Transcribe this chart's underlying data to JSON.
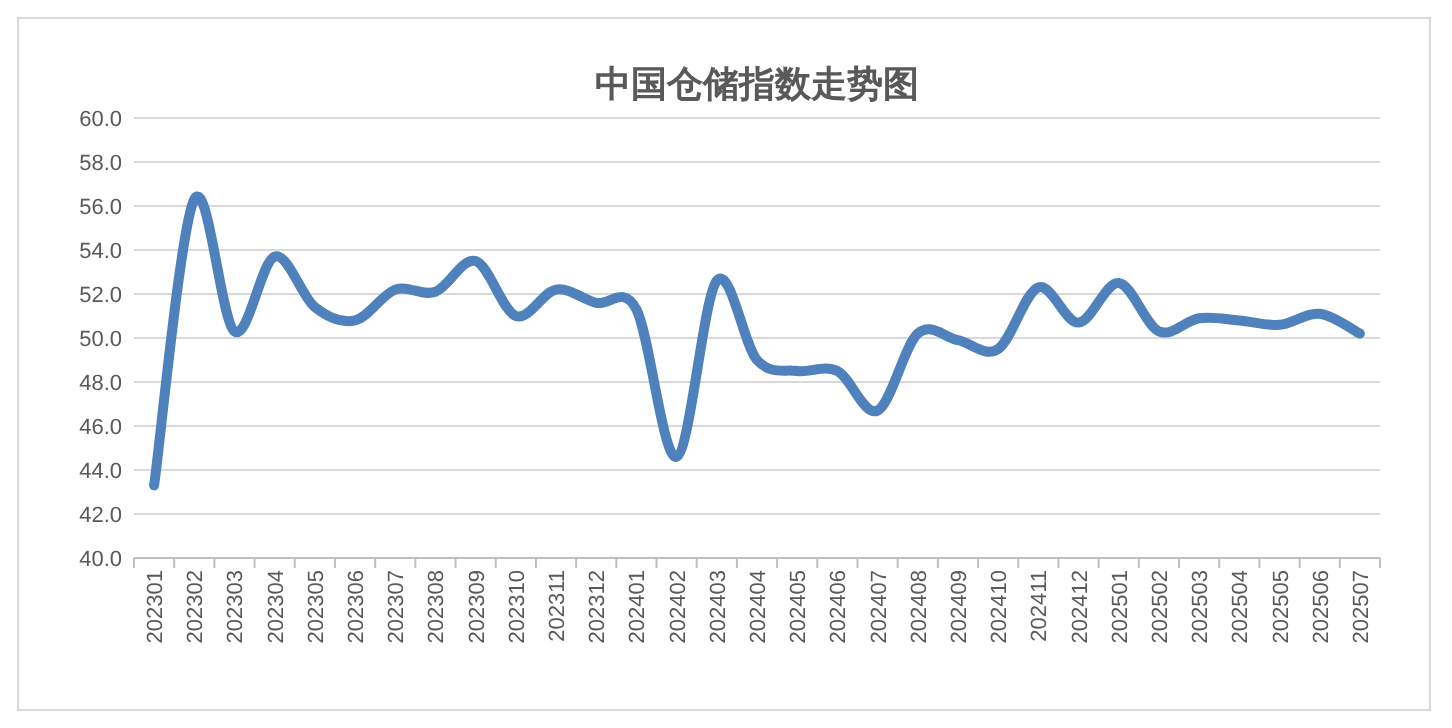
{
  "chart_data": {
    "type": "line",
    "title": "中国仓储指数走势图",
    "categories": [
      "202301",
      "202302",
      "202303",
      "202304",
      "202305",
      "202306",
      "202307",
      "202308",
      "202309",
      "202310",
      "202311",
      "202312",
      "202401",
      "202402",
      "202403",
      "202404",
      "202405",
      "202406",
      "202407",
      "202408",
      "202409",
      "202410",
      "202411",
      "202412",
      "202501",
      "202502",
      "202503",
      "202504",
      "202505",
      "202506",
      "202507"
    ],
    "series": [
      {
        "color": "#4f81bd",
        "values": [
          43.3,
          56.3,
          50.3,
          53.7,
          51.4,
          50.8,
          52.2,
          52.1,
          53.5,
          51.0,
          52.2,
          51.6,
          51.3,
          44.6,
          52.6,
          49.0,
          48.5,
          48.5,
          46.7,
          50.2,
          49.9,
          49.5,
          52.3,
          50.7,
          52.5,
          50.3,
          50.9,
          50.8,
          50.6,
          51.1,
          50.2
        ]
      }
    ],
    "ylim": [
      40,
      60
    ],
    "yticks": [
      {
        "value": 40,
        "label": "40.0"
      },
      {
        "value": 42,
        "label": "42.0"
      },
      {
        "value": 44,
        "label": "44.0"
      },
      {
        "value": 46,
        "label": "46.0"
      },
      {
        "value": 48,
        "label": "48.0"
      },
      {
        "value": 50,
        "label": "50.0"
      },
      {
        "value": 52,
        "label": "52.0"
      },
      {
        "value": 54,
        "label": "54.0"
      },
      {
        "value": 56,
        "label": "56.0"
      },
      {
        "value": 58,
        "label": "58.0"
      },
      {
        "value": 60,
        "label": "60.0"
      }
    ],
    "grid": "y",
    "marker": "none",
    "line_style": "solid"
  }
}
